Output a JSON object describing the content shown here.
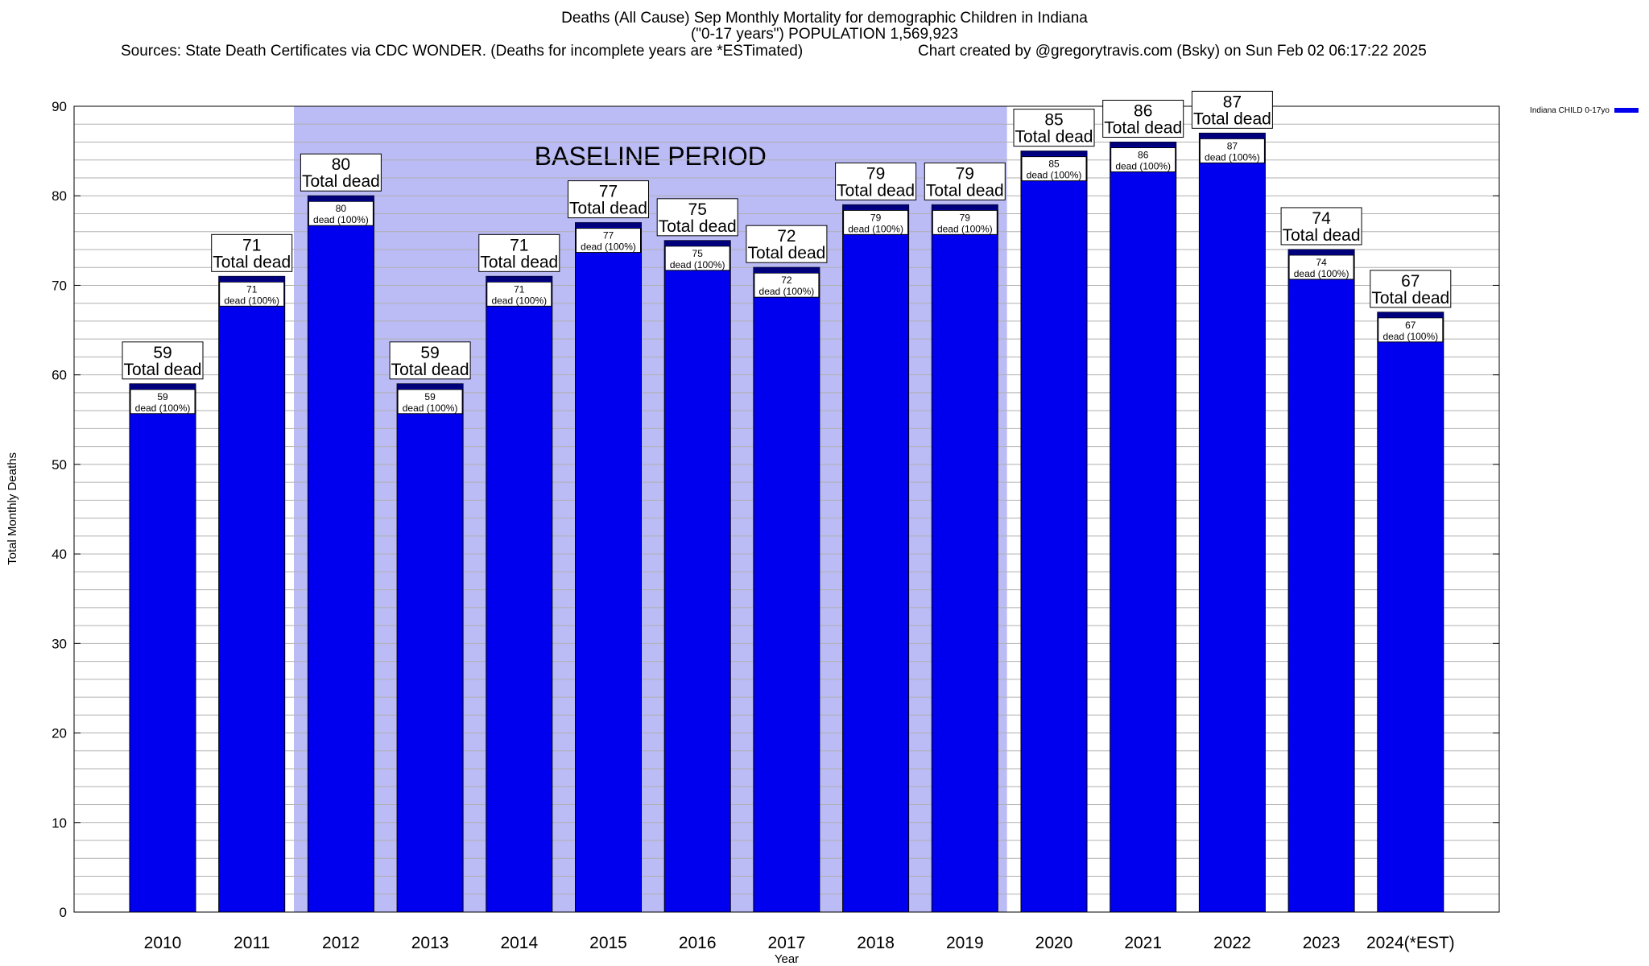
{
  "header": {
    "title_line1": "Deaths (All Cause) Sep Monthly Mortality for demographic Children in Indiana",
    "title_line2": "(\"0-17 years\") POPULATION 1,569,923",
    "sources": "Sources: State Death Certificates via CDC WONDER. (Deaths for incomplete years are *ESTimated)",
    "credit": "Chart created by @gregorytravis.com (Bsky) on Sun Feb 02 06:17:22 2025"
  },
  "chart_data": {
    "type": "bar",
    "title": "Deaths (All Cause) Sep Monthly Mortality for demographic Children in Indiana",
    "xlabel": "Year",
    "ylabel": "Total Monthly Deaths",
    "ylim": [
      0,
      90
    ],
    "y_ticks": [
      0,
      10,
      20,
      30,
      40,
      50,
      60,
      70,
      80,
      90
    ],
    "minor_grid_step": 2,
    "grid": true,
    "legend_position": "top-right, outside plot",
    "categories": [
      "2010",
      "2011",
      "2012",
      "2013",
      "2014",
      "2015",
      "2016",
      "2017",
      "2018",
      "2019",
      "2020",
      "2021",
      "2022",
      "2023",
      "2024(*EST)"
    ],
    "series": [
      {
        "name": "Indiana CHILD 0-17yo",
        "values": [
          59,
          71,
          80,
          59,
          71,
          77,
          75,
          72,
          79,
          79,
          85,
          86,
          87,
          74,
          67
        ]
      }
    ],
    "baseline_period": {
      "label": "BASELINE PERIOD",
      "from": "2012",
      "to": "2019"
    },
    "bar_label_top_suffix": "Total dead",
    "bar_label_inner_suffix": "dead (100%)",
    "colors": {
      "bar": "#0000ee",
      "bar_cap": "#00007a",
      "baseline_shade": "#bbbbf6",
      "grid": "#b0b0b0"
    }
  }
}
